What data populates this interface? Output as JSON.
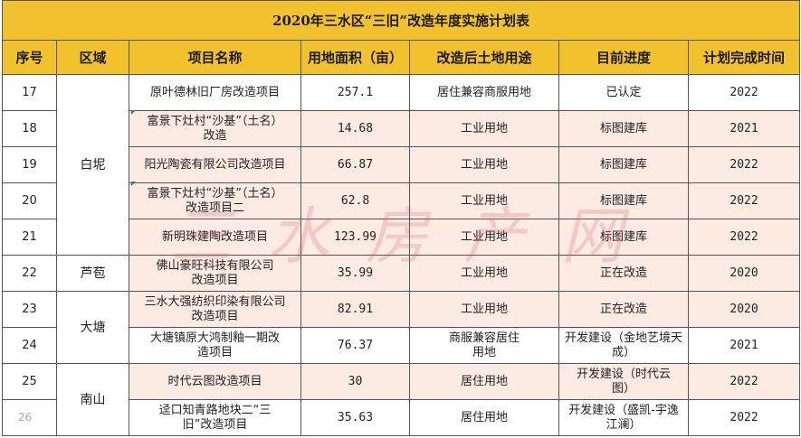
{
  "title": "2020年三水区“三旧”改造年度实施计划表",
  "headers": [
    "序号",
    "区域",
    "项目名称",
    "用地面积（亩）",
    "改造后土地用途",
    "目前进度",
    "计划完成时间"
  ],
  "regions": {
    "baini": "白坭",
    "luhuan": "芦苞",
    "datang": "大塘",
    "nanshan": "南山"
  },
  "rows": [
    {
      "no": "17",
      "name": "原叶德林旧厂房改造项目",
      "area": "257.1",
      "use": "居住兼容商服用地",
      "progress": "已认定",
      "year": "2022"
    },
    {
      "no": "18",
      "name": "富景下灶村“沙基”（土名）改造",
      "area": "14.68",
      "use": "工业用地",
      "progress": "标图建库",
      "year": "2021"
    },
    {
      "no": "19",
      "name": "阳光陶瓷有限公司改造项目",
      "area": "66.87",
      "use": "工业用地",
      "progress": "标图建库",
      "year": "2022"
    },
    {
      "no": "20",
      "name": "富景下灶村“沙基”（土名）改造项目二",
      "area": "62.8",
      "use": "工业用地",
      "progress": "标图建库",
      "year": "2022"
    },
    {
      "no": "21",
      "name": "新明珠建陶改造项目",
      "area": "123.99",
      "use": "工业用地",
      "progress": "标图建库",
      "year": "2022"
    },
    {
      "no": "22",
      "name": "佛山豪旺科技有限公司改造项目",
      "area": "35.99",
      "use": "工业用地",
      "progress": "正在改造",
      "year": "2020"
    },
    {
      "no": "23",
      "name": "三水大强纺织印染有限公司改造项目",
      "area": "82.91",
      "use": "工业用地",
      "progress": "正在改造",
      "year": "2020"
    },
    {
      "no": "24",
      "name": "大塘镇原大鸿制釉一期改造项目",
      "area": "76.37",
      "use": "商服兼容居住用地",
      "progress": "开发建设（金地艺境天成）",
      "year": "2021"
    },
    {
      "no": "25",
      "name": "时代云图改造项目",
      "area": "30",
      "use": "居住用地",
      "progress": "开发建设（时代云图）",
      "year": "2022"
    },
    {
      "no": "",
      "name": "迳口知青路地块二“三旧”改造项目",
      "area": "35.63",
      "use": "居住用地",
      "progress": "开发建设（盛凯-宇逸江澜）",
      "year": "2022"
    }
  ],
  "watermark": "三水房产网",
  "ghost_no": "26"
}
